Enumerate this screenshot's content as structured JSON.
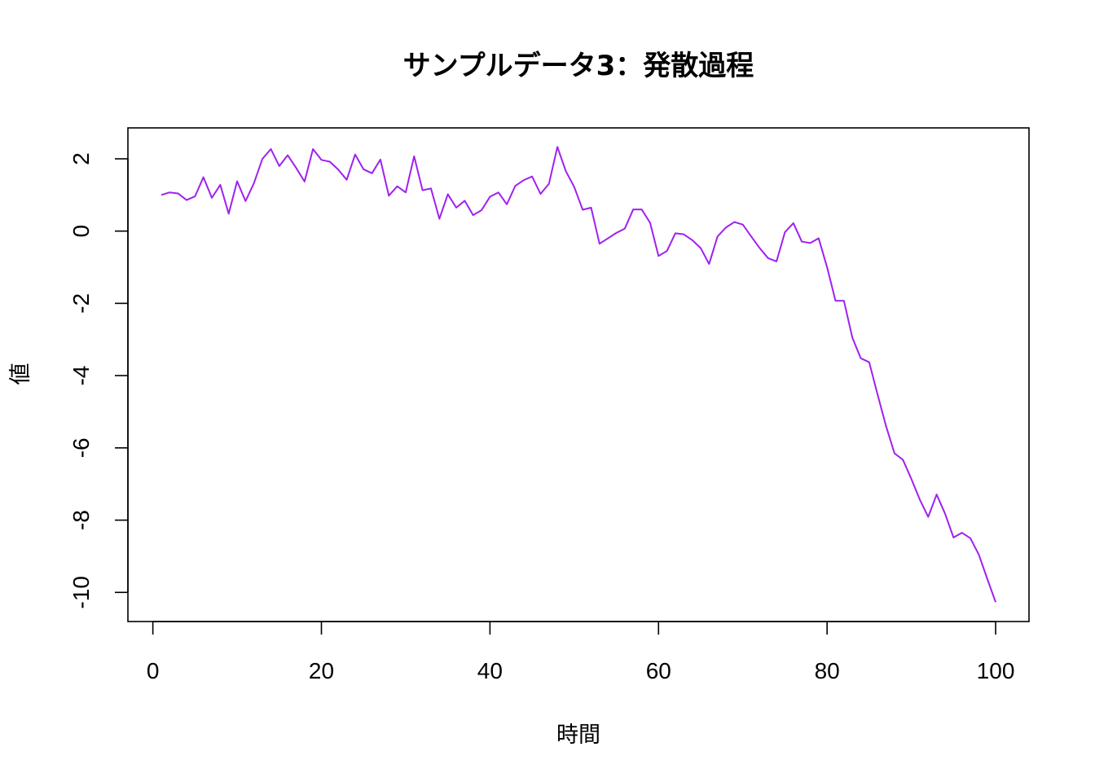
{
  "chart_data": {
    "type": "line",
    "title": "サンプルデータ3：発散過程",
    "xlabel": "時間",
    "ylabel": "値",
    "xlim": [
      1,
      100
    ],
    "ylim": [
      -10.3,
      2.35
    ],
    "x_ticks": [
      0,
      20,
      40,
      60,
      80,
      100
    ],
    "y_ticks": [
      -10,
      -8,
      -6,
      -4,
      -2,
      0,
      2
    ],
    "x_tick_labels": [
      "0",
      "20",
      "40",
      "60",
      "80",
      "100"
    ],
    "y_tick_labels": [
      "-10",
      "-8",
      "-6",
      "-4",
      "-2",
      "0",
      "2"
    ],
    "line_color": "#a020f0",
    "grid": false,
    "series": [
      {
        "x": [
          1,
          2,
          3,
          4,
          5,
          6,
          7,
          8,
          9,
          10,
          11,
          12,
          13,
          14,
          15,
          16,
          17,
          18,
          19,
          20,
          21,
          22,
          23,
          24,
          25,
          26,
          27,
          28,
          29,
          30,
          31,
          32,
          33,
          34,
          35,
          36,
          37,
          38,
          39,
          40,
          41,
          42,
          43,
          44,
          45,
          46,
          47,
          48,
          49,
          50,
          51,
          52,
          53,
          54,
          55,
          56,
          57,
          58,
          59,
          60,
          61,
          62,
          63,
          64,
          65,
          66,
          67,
          68,
          69,
          70,
          71,
          72,
          73,
          74,
          75,
          76,
          77,
          78,
          79,
          80,
          81,
          82,
          83,
          84,
          85,
          86,
          87,
          88,
          89,
          90,
          91,
          92,
          93,
          94,
          95,
          96,
          97,
          98,
          99,
          100
        ],
        "values": [
          1.0,
          1.07,
          1.04,
          0.86,
          0.96,
          1.49,
          0.92,
          1.28,
          0.48,
          1.38,
          0.83,
          1.33,
          2.0,
          2.27,
          1.8,
          2.1,
          1.75,
          1.37,
          2.27,
          1.97,
          1.92,
          1.7,
          1.42,
          2.12,
          1.71,
          1.6,
          1.98,
          0.98,
          1.24,
          1.07,
          2.07,
          1.13,
          1.18,
          0.34,
          1.02,
          0.65,
          0.84,
          0.44,
          0.58,
          0.95,
          1.07,
          0.74,
          1.25,
          1.41,
          1.51,
          1.03,
          1.31,
          2.33,
          1.66,
          1.22,
          0.59,
          0.65,
          -0.35,
          -0.2,
          -0.05,
          0.07,
          0.6,
          0.6,
          0.23,
          -0.69,
          -0.55,
          -0.06,
          -0.09,
          -0.25,
          -0.47,
          -0.91,
          -0.15,
          0.1,
          0.25,
          0.18,
          -0.15,
          -0.47,
          -0.75,
          -0.84,
          -0.03,
          0.22,
          -0.29,
          -0.33,
          -0.2,
          -1.0,
          -1.93,
          -1.93,
          -2.95,
          -3.52,
          -3.63,
          -4.53,
          -5.4,
          -6.15,
          -6.33,
          -6.86,
          -7.43,
          -7.91,
          -7.29,
          -7.82,
          -8.48,
          -8.35,
          -8.5,
          -8.95,
          -9.62,
          -10.27
        ]
      }
    ]
  }
}
